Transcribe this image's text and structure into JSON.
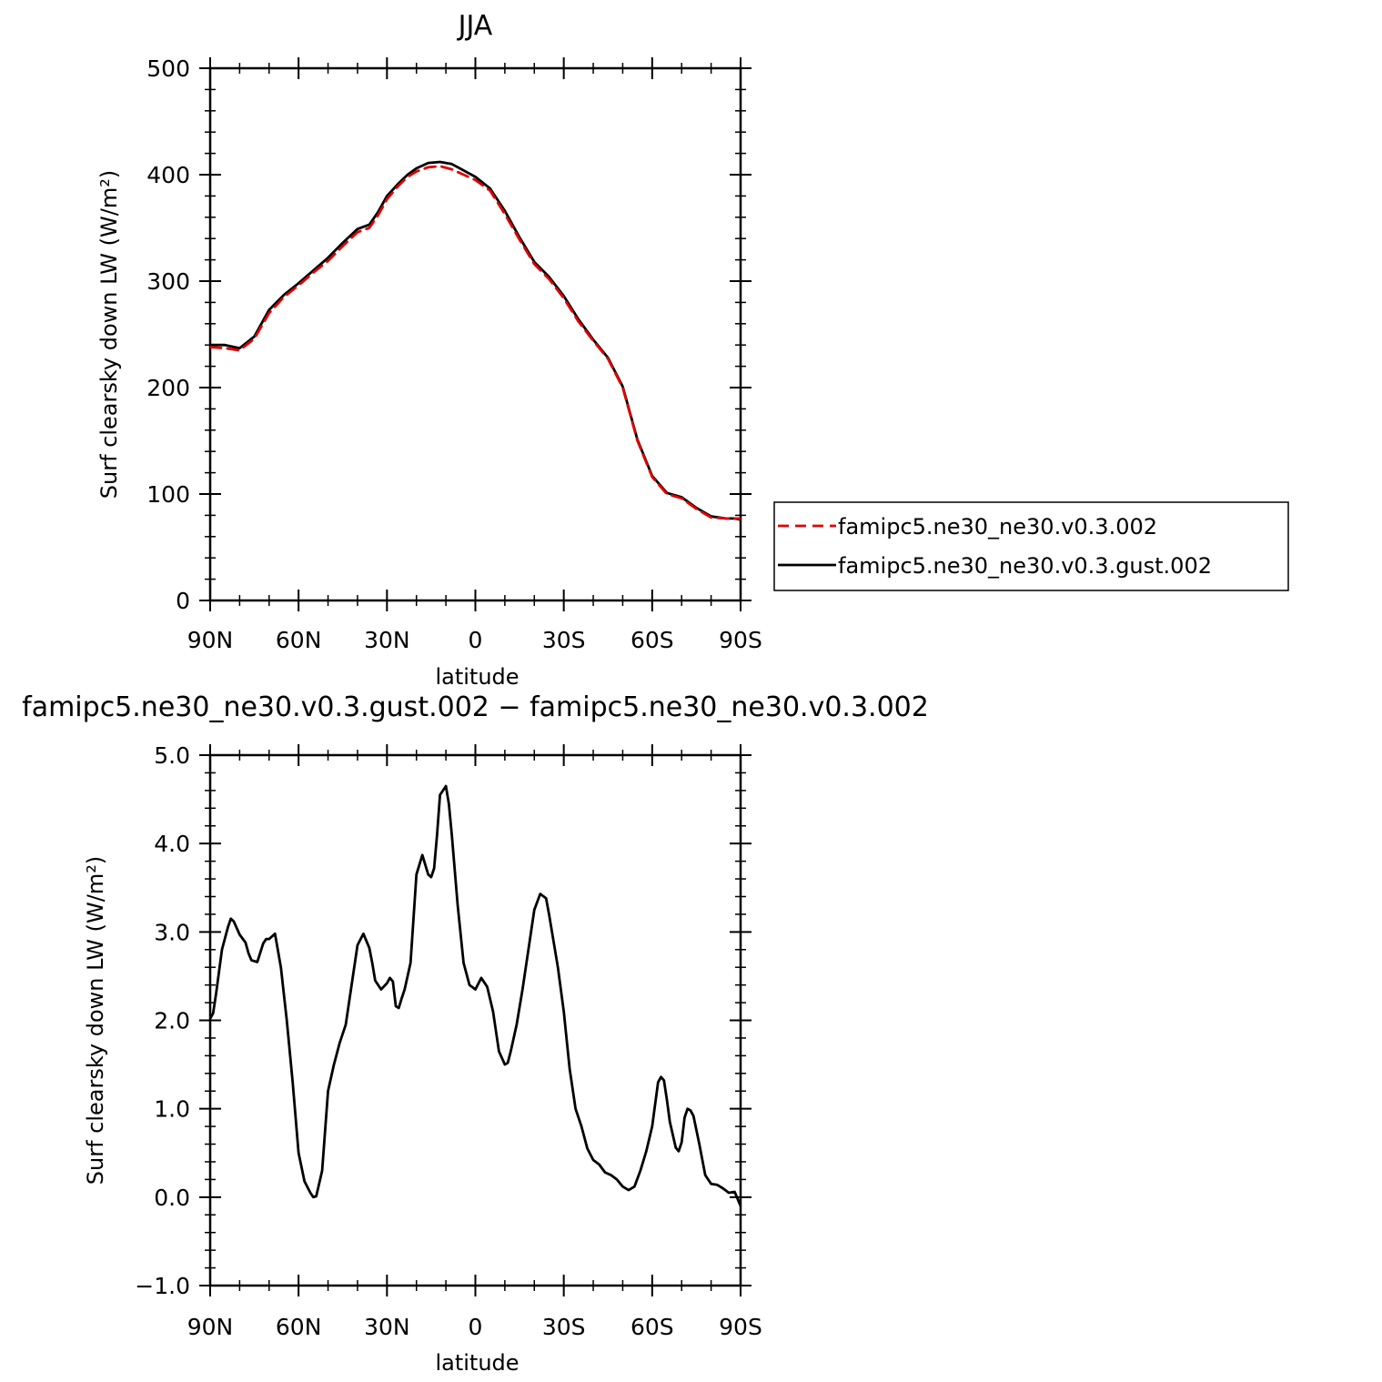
{
  "chart_data": [
    {
      "type": "line",
      "title": "JJA",
      "xlabel": "latitude",
      "ylabel": "Surf clearsky down LW (W/m²)",
      "ylim": [
        0,
        500
      ],
      "yticks": [
        "0",
        "100",
        "200",
        "300",
        "400",
        "500"
      ],
      "xlim": [
        90,
        -90
      ],
      "xticks": [
        {
          "value": 90,
          "label": "90N"
        },
        {
          "value": 60,
          "label": "60N"
        },
        {
          "value": 30,
          "label": "30N"
        },
        {
          "value": 0,
          "label": "0"
        },
        {
          "value": -30,
          "label": "30S"
        },
        {
          "value": -60,
          "label": "60S"
        },
        {
          "value": -90,
          "label": "90S"
        }
      ],
      "grid": false,
      "legend": "right",
      "series": [
        {
          "name": "famipc5.ne30_ne30.v0.3.002",
          "color": "#e00000",
          "dash": "dashed",
          "x": [
            90,
            85,
            80,
            75,
            70,
            65,
            60,
            55,
            50,
            45,
            40,
            36,
            33,
            30,
            26,
            23,
            20,
            16,
            12,
            8,
            4,
            0,
            -5,
            -10,
            -15,
            -20,
            -25,
            -30,
            -35,
            -40,
            -45,
            -50,
            -55,
            -60,
            -65,
            -70,
            -75,
            -80,
            -85,
            -88,
            -90
          ],
          "y": [
            238,
            237,
            235,
            246,
            270,
            285,
            296,
            308,
            319,
            333,
            346,
            350,
            362,
            377,
            390,
            398,
            403,
            407,
            408,
            405,
            400,
            395,
            385,
            363,
            339,
            316,
            302,
            284,
            262,
            244,
            227,
            200,
            150,
            116,
            100,
            96,
            86,
            78,
            77,
            77,
            77
          ]
        },
        {
          "name": "famipc5.ne30_ne30.v0.3.gust.002",
          "color": "#000000",
          "dash": "solid",
          "x": [
            90,
            85,
            80,
            75,
            70,
            65,
            60,
            55,
            50,
            45,
            40,
            36,
            33,
            30,
            26,
            23,
            20,
            16,
            12,
            8,
            4,
            0,
            -5,
            -10,
            -15,
            -20,
            -25,
            -30,
            -35,
            -40,
            -45,
            -50,
            -55,
            -60,
            -65,
            -70,
            -75,
            -80,
            -85,
            -88,
            -90
          ],
          "y": [
            240,
            240,
            237,
            248,
            273,
            287,
            298,
            310,
            322,
            336,
            349,
            353,
            365,
            380,
            392,
            400,
            406,
            411,
            412,
            410,
            404,
            398,
            387,
            366,
            341,
            318,
            304,
            286,
            264,
            245,
            228,
            201,
            151,
            117,
            101,
            97,
            87,
            79,
            77,
            77,
            76
          ]
        }
      ]
    },
    {
      "type": "line",
      "title": "famipc5.ne30_ne30.v0.3.gust.002 − famipc5.ne30_ne30.v0.3.002",
      "xlabel": "latitude",
      "ylabel": "Surf clearsky down LW (W/m²)",
      "ylim": [
        -1.0,
        5.0
      ],
      "yticks": [
        "−1.0",
        "0.0",
        "1.0",
        "2.0",
        "3.0",
        "4.0",
        "5.0"
      ],
      "xlim": [
        90,
        -90
      ],
      "xticks": [
        {
          "value": 90,
          "label": "90N"
        },
        {
          "value": 60,
          "label": "60N"
        },
        {
          "value": 30,
          "label": "30N"
        },
        {
          "value": 0,
          "label": "0"
        },
        {
          "value": -30,
          "label": "30S"
        },
        {
          "value": -60,
          "label": "60S"
        },
        {
          "value": -90,
          "label": "90S"
        }
      ],
      "grid": false,
      "series": [
        {
          "color": "#000000",
          "dash": "solid",
          "x": [
            90,
            89,
            88,
            86,
            84,
            83,
            82,
            80,
            78,
            77,
            76,
            74,
            72,
            71,
            70,
            68,
            66,
            64,
            62,
            60,
            58,
            56,
            55,
            54,
            52,
            50,
            48,
            46,
            44,
            42,
            40,
            38,
            36,
            35,
            34,
            32,
            30,
            29,
            28,
            27,
            26,
            25,
            24,
            22,
            20,
            18,
            16,
            15,
            14,
            13,
            12,
            10,
            9,
            8,
            6,
            4,
            2,
            0,
            -2,
            -4,
            -6,
            -8,
            -10,
            -11,
            -12,
            -14,
            -16,
            -18,
            -20,
            -22,
            -24,
            -25,
            -26,
            -28,
            -30,
            -32,
            -34,
            -36,
            -38,
            -40,
            -42,
            -44,
            -46,
            -48,
            -50,
            -52,
            -54,
            -56,
            -58,
            -60,
            -62,
            -63,
            -64,
            -65,
            -66,
            -68,
            -69,
            -70,
            -71,
            -72,
            -73,
            -74,
            -76,
            -78,
            -80,
            -82,
            -84,
            -86,
            -88,
            -90
          ],
          "y": [
            2.02,
            2.08,
            2.3,
            2.8,
            3.05,
            3.15,
            3.12,
            2.97,
            2.88,
            2.76,
            2.68,
            2.66,
            2.87,
            2.92,
            2.92,
            2.98,
            2.6,
            2.0,
            1.3,
            0.5,
            0.18,
            0.05,
            0.0,
            0.01,
            0.3,
            1.2,
            1.5,
            1.75,
            1.95,
            2.4,
            2.85,
            2.98,
            2.82,
            2.65,
            2.45,
            2.35,
            2.42,
            2.48,
            2.44,
            2.16,
            2.14,
            2.25,
            2.35,
            2.65,
            3.65,
            3.87,
            3.65,
            3.62,
            3.72,
            4.1,
            4.55,
            4.65,
            4.45,
            4.1,
            3.3,
            2.65,
            2.4,
            2.35,
            2.48,
            2.38,
            2.1,
            1.65,
            1.5,
            1.52,
            1.65,
            1.95,
            2.35,
            2.8,
            3.25,
            3.43,
            3.38,
            3.2,
            3.0,
            2.6,
            2.1,
            1.45,
            1.0,
            0.8,
            0.55,
            0.42,
            0.37,
            0.28,
            0.25,
            0.2,
            0.12,
            0.08,
            0.12,
            0.3,
            0.52,
            0.8,
            1.3,
            1.36,
            1.32,
            1.1,
            0.85,
            0.56,
            0.52,
            0.62,
            0.9,
            1.0,
            0.98,
            0.92,
            0.6,
            0.25,
            0.15,
            0.14,
            0.1,
            0.05,
            0.06,
            -0.1
          ]
        }
      ]
    }
  ]
}
